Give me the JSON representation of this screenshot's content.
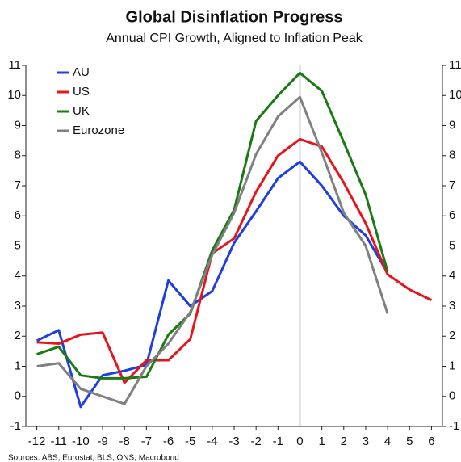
{
  "chart_data": {
    "type": "line",
    "title": "Global Disinflation Progress",
    "subtitle": "Annual CPI Growth, Aligned to Inflation Peak",
    "source": "Sources: ABS, Eurostat, BLS, ONS, Macrobond",
    "x": [
      -12,
      -11,
      -10,
      -9,
      -8,
      -7,
      -6,
      -5,
      -4,
      -3,
      -2,
      -1,
      0,
      1,
      2,
      3,
      4,
      5,
      6
    ],
    "series": [
      {
        "name": "AU",
        "color": "#1f3ee0",
        "values": [
          1.85,
          2.2,
          -0.35,
          0.7,
          0.85,
          1.05,
          3.85,
          3.0,
          3.5,
          5.1,
          6.15,
          7.25,
          7.8,
          7.0,
          6.0,
          5.35,
          4.1,
          null,
          null
        ]
      },
      {
        "name": "US",
        "color": "#e8141c",
        "values": [
          1.8,
          1.75,
          2.05,
          2.12,
          0.45,
          1.2,
          1.2,
          1.9,
          4.75,
          5.25,
          6.8,
          8.0,
          8.55,
          8.3,
          7.1,
          5.75,
          4.05,
          3.55,
          3.2
        ]
      },
      {
        "name": "UK",
        "color": "#1a7a14",
        "values": [
          1.4,
          1.65,
          0.7,
          0.6,
          0.6,
          0.65,
          2.05,
          2.75,
          4.85,
          6.2,
          9.15,
          10.0,
          10.75,
          10.15,
          8.45,
          6.7,
          4.15,
          null,
          null
        ]
      },
      {
        "name": "Eurozone",
        "color": "#808080",
        "values": [
          1.0,
          1.1,
          0.25,
          0.0,
          -0.25,
          1.0,
          1.75,
          2.8,
          4.7,
          6.1,
          8.05,
          9.3,
          9.95,
          8.1,
          6.1,
          5.0,
          2.75,
          null,
          null
        ]
      }
    ],
    "xlim": [
      -12.5,
      6.5
    ],
    "xticks": [
      -12,
      -11,
      -10,
      -9,
      -8,
      -7,
      -6,
      -5,
      -4,
      -3,
      -2,
      -1,
      0,
      1,
      2,
      3,
      4,
      5,
      6
    ],
    "ylim": [
      -1,
      11
    ],
    "yticks": [
      -1,
      0,
      1,
      2,
      3,
      4,
      5,
      6,
      7,
      8,
      9,
      10,
      11
    ],
    "vertical_line_x": 0,
    "legend": "upper left"
  }
}
